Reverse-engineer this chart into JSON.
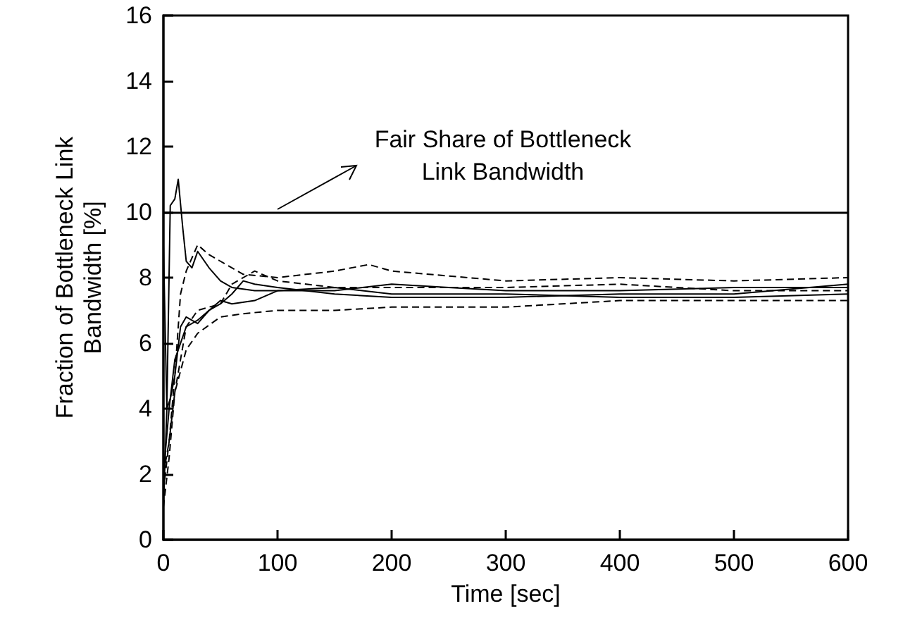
{
  "chart_data": {
    "type": "line",
    "xlabel": "Time [sec]",
    "ylabel": "Fraction of Bottleneck Link\nBandwidth [%]",
    "xlim": [
      0,
      600
    ],
    "xticks": [
      0,
      100,
      200,
      300,
      400,
      500,
      600
    ],
    "ylim": [
      0,
      16
    ],
    "yticks": [
      0,
      2,
      4,
      6,
      8,
      10,
      12,
      14,
      16
    ],
    "grid": false,
    "marker": "none",
    "ref_lines": [
      {
        "axis": "y",
        "value": 10,
        "color": "#000000",
        "line_style": "solid"
      }
    ],
    "annotations": [
      {
        "text": "Fair Share of Bottleneck\nLink Bandwidth",
        "x": 100,
        "y": 10
      }
    ],
    "series": [
      {
        "color": "#000000",
        "line_style": "solid",
        "x": [
          0,
          3,
          6,
          10,
          13,
          17,
          20,
          25,
          30,
          40,
          50,
          60,
          80,
          100,
          150,
          200,
          250,
          300,
          400,
          500,
          600
        ],
        "values": [
          1,
          4,
          10.2,
          10.4,
          11,
          9.5,
          8.5,
          8.3,
          8.8,
          8.3,
          7.9,
          7.7,
          7.6,
          7.6,
          7.6,
          7.8,
          7.7,
          7.6,
          7.6,
          7.7,
          7.7
        ]
      },
      {
        "color": "#000000",
        "line_style": "solid",
        "x": [
          0,
          3,
          6,
          10,
          15,
          20,
          30,
          40,
          50,
          60,
          70,
          80,
          100,
          150,
          200,
          300,
          400,
          500,
          600
        ],
        "values": [
          9,
          4,
          4.3,
          5,
          6.5,
          6.8,
          6.6,
          7,
          7.2,
          7.5,
          7.9,
          7.8,
          7.7,
          7.5,
          7.4,
          7.4,
          7.5,
          7.5,
          7.8
        ]
      },
      {
        "color": "#000000",
        "line_style": "dashed",
        "x": [
          0,
          5,
          10,
          15,
          20,
          30,
          40,
          50,
          70,
          100,
          150,
          180,
          200,
          300,
          400,
          500,
          600
        ],
        "values": [
          2,
          3,
          5,
          7.5,
          8.2,
          9,
          8.7,
          8.5,
          8.1,
          8,
          8.2,
          8.4,
          8.2,
          7.9,
          8,
          7.9,
          8
        ]
      },
      {
        "color": "#000000",
        "line_style": "dashed",
        "x": [
          0,
          5,
          10,
          20,
          30,
          50,
          70,
          100,
          150,
          200,
          300,
          400,
          500,
          600
        ],
        "values": [
          1.5,
          3,
          4.5,
          5.8,
          6.3,
          6.8,
          6.9,
          7,
          7,
          7.1,
          7.1,
          7.3,
          7.3,
          7.3
        ]
      },
      {
        "color": "#000000",
        "line_style": "dashed",
        "x": [
          0,
          5,
          10,
          20,
          30,
          50,
          60,
          80,
          100,
          150,
          200,
          300,
          400,
          500,
          600
        ],
        "values": [
          1,
          2.5,
          4.5,
          6.5,
          7,
          7.2,
          7.8,
          8.2,
          7.9,
          7.7,
          7.7,
          7.7,
          7.8,
          7.6,
          7.6
        ]
      },
      {
        "color": "#000000",
        "line_style": "solid",
        "x": [
          0,
          5,
          10,
          20,
          30,
          40,
          50,
          60,
          80,
          100,
          150,
          200,
          300,
          400,
          500,
          600
        ],
        "values": [
          2,
          4,
          5.5,
          6.5,
          6.7,
          7,
          7.3,
          7.2,
          7.3,
          7.6,
          7.7,
          7.5,
          7.5,
          7.4,
          7.4,
          7.5
        ]
      }
    ]
  }
}
